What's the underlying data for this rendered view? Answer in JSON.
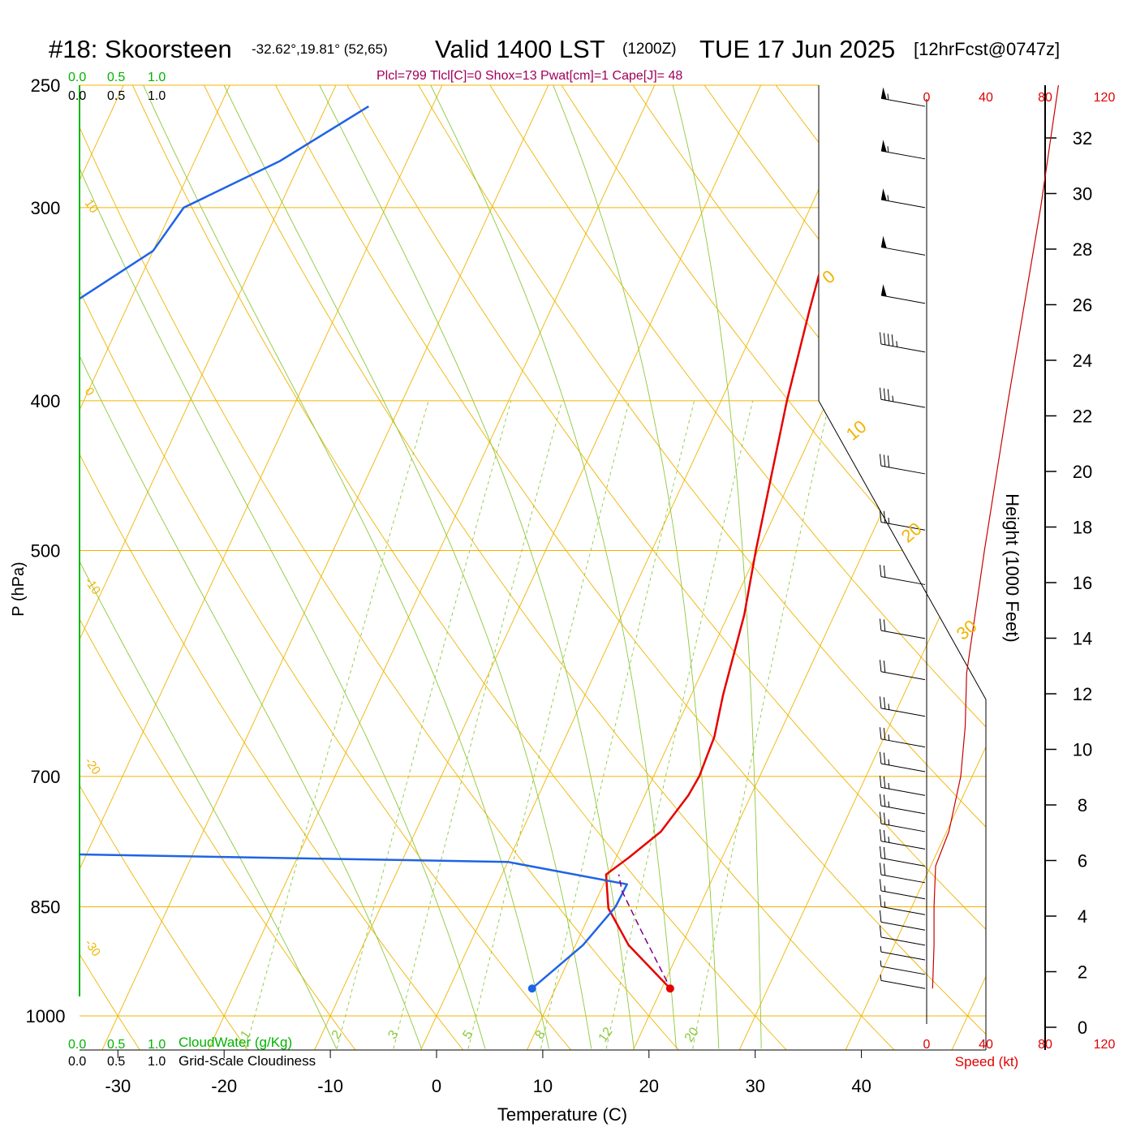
{
  "header": {
    "station": "#18: Skoorsteen",
    "coords": "-32.62°,19.81° (52,65)",
    "valid": "Valid 1400 LST",
    "utc": "(1200Z)",
    "date": "TUE 17 Jun 2025",
    "fcst": "[12hrFcst@0747z]",
    "indices": "Plcl=799 Tlcl[C]=0 Shox=13 Pwat[cm]=1 Cape[J]= 48"
  },
  "scales": {
    "cloudwater_top": [
      "0.0",
      "0.5",
      "1.0"
    ],
    "cloudiness_top": [
      "0.0",
      "0.5",
      "1.0"
    ],
    "cloudwater_bottom": [
      "0.0",
      "0.5",
      "1.0"
    ],
    "cloudiness_bottom": [
      "0.0",
      "0.5",
      "1.0"
    ],
    "cloudwater_label": "CloudWater (g/Kg)",
    "cloudiness_label": "Grid-Scale Cloudiness",
    "speed_ticks_top": [
      "0",
      "40",
      "80",
      "120"
    ],
    "speed_ticks_bottom": [
      "0",
      "40",
      "80",
      "120"
    ],
    "speed_label": "Speed (kt)"
  },
  "colors": {
    "isotherm": "#f0b400",
    "dry_adiabat": "#f0b400",
    "moist_adiabat": "#8cc83c",
    "mixing_ratio": "#8cc83c",
    "temperature": "#e60000",
    "dewpoint": "#1e64e6",
    "parcel": "#800080",
    "cloudwater": "#00b400",
    "speed": "#c80000",
    "index_text": "#a0005a"
  },
  "chart_data": {
    "type": "line",
    "title": "#18: Skoorsteen",
    "xlabel": "Temperature (C)",
    "ylabel": "P (hPa)",
    "right_ylabel": "Height (1000 Feet)",
    "x_ticks": [
      -30,
      -20,
      -10,
      0,
      10,
      20,
      30,
      40
    ],
    "p_ticks": [
      250,
      300,
      400,
      500,
      700,
      850,
      1000
    ],
    "height_ticks": [
      0,
      2,
      4,
      6,
      8,
      10,
      12,
      14,
      16,
      18,
      20,
      22,
      24,
      26,
      28,
      30,
      32
    ],
    "mixing_ratio_labels": [
      "1",
      "2",
      "3",
      "5",
      "8",
      "12",
      "20"
    ],
    "isotherm_labels": [
      "10",
      "0",
      "-10",
      "-20",
      "-30"
    ],
    "dry_adiabat_labels": [
      "0",
      "10",
      "20",
      "30"
    ],
    "series": [
      {
        "name": "Temperature",
        "unit": "C",
        "points": [
          [
            960,
            20.8
          ],
          [
            900,
            15
          ],
          [
            852,
            11.5
          ],
          [
            810,
            9.8
          ],
          [
            790,
            11.2
          ],
          [
            760,
            13.1
          ],
          [
            720,
            14.1
          ],
          [
            700,
            14.3
          ],
          [
            660,
            14
          ],
          [
            620,
            13
          ],
          [
            550,
            11.5
          ],
          [
            500,
            9.8
          ],
          [
            450,
            8.1
          ],
          [
            400,
            6.2
          ],
          [
            350,
            4.4
          ],
          [
            300,
            2.5
          ],
          [
            275,
            1.7
          ],
          [
            258,
            1.2
          ]
        ]
      },
      {
        "name": "Dewpoint",
        "unit": "C",
        "points": [
          [
            960,
            7.8
          ],
          [
            900,
            10.7
          ],
          [
            850,
            12.1
          ],
          [
            822,
            12.2
          ],
          [
            795,
            0
          ],
          [
            780,
            -70
          ],
          [
            600,
            -80
          ],
          [
            550,
            -80
          ],
          [
            500,
            -80
          ],
          [
            450,
            -80
          ],
          [
            410,
            -77
          ],
          [
            360,
            -68
          ],
          [
            320,
            -60
          ],
          [
            300,
            -59
          ],
          [
            280,
            -52
          ],
          [
            258,
            -46
          ]
        ]
      },
      {
        "name": "Parcel",
        "unit": "C",
        "points": [
          [
            950,
            20.2
          ],
          [
            880,
            15.5
          ],
          [
            830,
            12
          ],
          [
            810,
            11
          ]
        ]
      }
    ],
    "surface": {
      "pressure": 960,
      "temperature": 20.8,
      "dewpoint": 7.8
    },
    "wind_speed_profile": [
      [
        960,
        4
      ],
      [
        900,
        5
      ],
      [
        850,
        5
      ],
      [
        800,
        6
      ],
      [
        760,
        15
      ],
      [
        700,
        23
      ],
      [
        650,
        26
      ],
      [
        600,
        27
      ],
      [
        500,
        39
      ],
      [
        400,
        55
      ],
      [
        300,
        77
      ],
      [
        250,
        89
      ]
    ],
    "wind_barbs": [
      {
        "p": 258,
        "speed": 55
      },
      {
        "p": 279,
        "speed": 55
      },
      {
        "p": 300,
        "speed": 55
      },
      {
        "p": 322,
        "speed": 50
      },
      {
        "p": 346,
        "speed": 50
      },
      {
        "p": 372,
        "speed": 45
      },
      {
        "p": 404,
        "speed": 35
      },
      {
        "p": 446,
        "speed": 30
      },
      {
        "p": 485,
        "speed": 25
      },
      {
        "p": 526,
        "speed": 20
      },
      {
        "p": 570,
        "speed": 20
      },
      {
        "p": 606,
        "speed": 20
      },
      {
        "p": 640,
        "speed": 25
      },
      {
        "p": 670,
        "speed": 25
      },
      {
        "p": 695,
        "speed": 25
      },
      {
        "p": 720,
        "speed": 25
      },
      {
        "p": 740,
        "speed": 25
      },
      {
        "p": 760,
        "speed": 25
      },
      {
        "p": 780,
        "speed": 25
      },
      {
        "p": 800,
        "speed": 20
      },
      {
        "p": 820,
        "speed": 20
      },
      {
        "p": 840,
        "speed": 15
      },
      {
        "p": 860,
        "speed": 15
      },
      {
        "p": 880,
        "speed": 10
      },
      {
        "p": 900,
        "speed": 10
      },
      {
        "p": 920,
        "speed": 5
      },
      {
        "p": 940,
        "speed": 5
      },
      {
        "p": 960,
        "speed": 5
      }
    ]
  }
}
